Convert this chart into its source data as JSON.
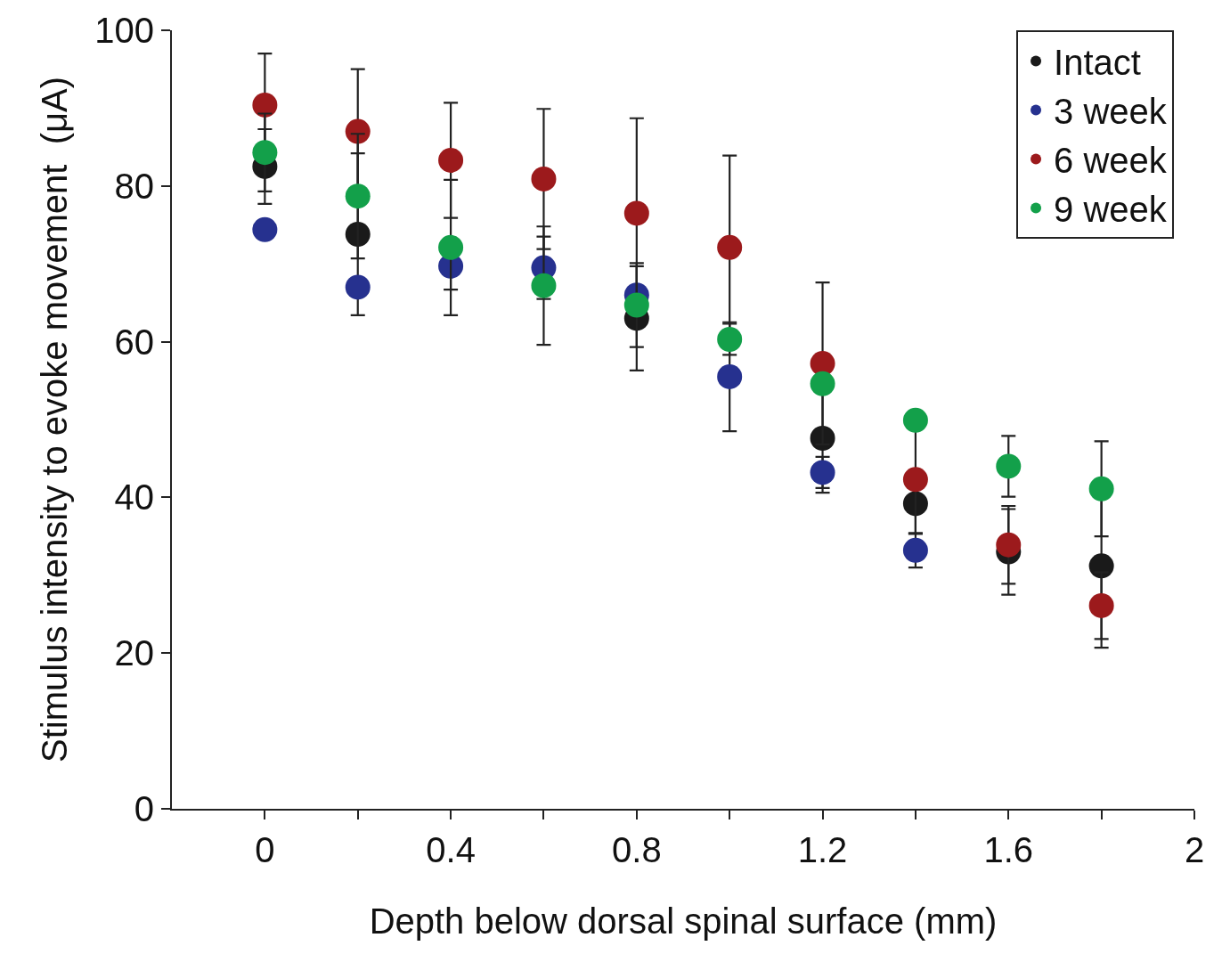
{
  "chart_data": {
    "type": "scatter",
    "xlabel": "Depth below dorsal spinal surface (mm)",
    "ylabel": "Stimulus intensity to evoke movement  (μA)",
    "x": [
      0,
      0.2,
      0.4,
      0.6,
      0.8,
      1.0,
      1.2,
      1.4,
      1.6,
      1.8
    ],
    "series": [
      {
        "name": "Intact",
        "color": "#1a1a1a",
        "values": [
          82.5,
          73.8,
          null,
          null,
          63.0,
          null,
          47.6,
          39.2,
          33.0,
          31.2
        ],
        "errors": [
          4.8,
          10.4,
          null,
          null,
          6.7,
          null,
          7,
          3.8,
          5.5,
          10.5
        ]
      },
      {
        "name": "3 week",
        "color": "#26318f",
        "values": [
          74.4,
          67.0,
          69.7,
          69.5,
          66.0,
          55.5,
          43.2,
          33.2,
          null,
          null
        ],
        "errors": [
          null,
          null,
          3,
          4,
          null,
          7,
          2,
          2.2,
          null,
          null
        ]
      },
      {
        "name": "6 week",
        "color": "#9c1a1c",
        "values": [
          90.4,
          87.0,
          83.3,
          80.9,
          76.5,
          72.1,
          57.2,
          42.3,
          33.9,
          26.1
        ],
        "errors": [
          6.6,
          8,
          7.4,
          9,
          12.2,
          11.8,
          10.4,
          7,
          5,
          4.3
        ]
      },
      {
        "name": "9 week",
        "color": "#13a04a",
        "values": [
          84.3,
          78.7,
          72.1,
          67.2,
          64.7,
          60.3,
          54.6,
          49.9,
          44.0,
          41.1
        ],
        "errors": [
          5,
          8,
          8.7,
          7.6,
          5.4,
          2,
          null,
          null,
          3.9,
          6.1
        ]
      }
    ],
    "xlim": [
      -0.2,
      2
    ],
    "xticks": [
      0,
      {
        "value": 0.2,
        "label": null
      },
      0.4,
      {
        "value": 0.6,
        "label": null
      },
      0.8,
      {
        "value": 1.0,
        "label": null
      },
      1.2,
      {
        "value": 1.4,
        "label": null
      },
      1.6,
      {
        "value": 1.8,
        "label": null
      },
      2
    ],
    "ylim": [
      0,
      100
    ],
    "yticks": [
      0,
      20,
      40,
      60,
      80,
      100
    ],
    "legend": "top right",
    "marker": "circle"
  }
}
